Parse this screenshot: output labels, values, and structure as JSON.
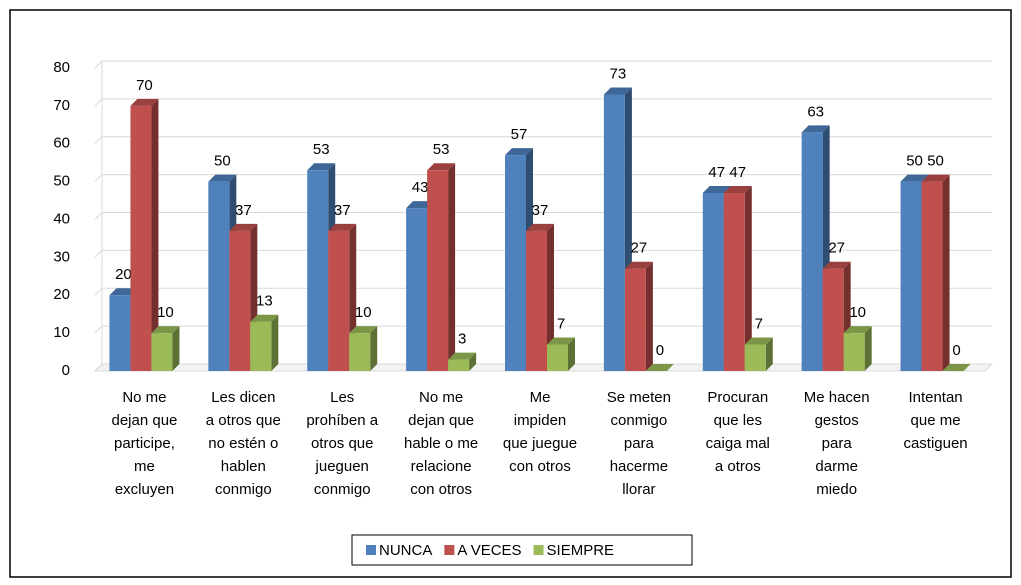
{
  "chart_data": {
    "type": "bar3d",
    "categories": [
      [
        "No me",
        "dejan que",
        "participe,",
        "me",
        "excluyen"
      ],
      [
        "Les dicen",
        "a otros que",
        "no estén o",
        "hablen",
        "conmigo"
      ],
      [
        "Les",
        "prohíben a",
        "otros que",
        "jueguen",
        "conmigo"
      ],
      [
        "No me",
        "dejan que",
        "hable o me",
        "relacione",
        "con otros"
      ],
      [
        "Me",
        "impiden",
        "que juegue",
        "con otros"
      ],
      [
        "Se meten",
        "conmigo",
        "para",
        "hacerme",
        "llorar"
      ],
      [
        "Procuran",
        "que les",
        "caiga mal",
        "a otros"
      ],
      [
        "Me hacen",
        "gestos",
        "para",
        "darme",
        "miedo"
      ],
      [
        "Intentan",
        "que me",
        "castiguen"
      ]
    ],
    "series": [
      {
        "name": "NUNCA",
        "color": "#4f81bd",
        "values": [
          20,
          50,
          53,
          43,
          57,
          73,
          47,
          63,
          50
        ]
      },
      {
        "name": "A VECES",
        "color": "#c0504d",
        "values": [
          70,
          37,
          37,
          53,
          37,
          27,
          47,
          27,
          50
        ]
      },
      {
        "name": "SIEMPRE",
        "color": "#9bbb59",
        "values": [
          10,
          13,
          10,
          3,
          7,
          0,
          7,
          10,
          0
        ]
      }
    ],
    "ylim": [
      0,
      80
    ],
    "yticks": [
      0,
      10,
      20,
      30,
      40,
      50,
      60,
      70,
      80
    ],
    "grid": true,
    "legend": "bottom"
  }
}
